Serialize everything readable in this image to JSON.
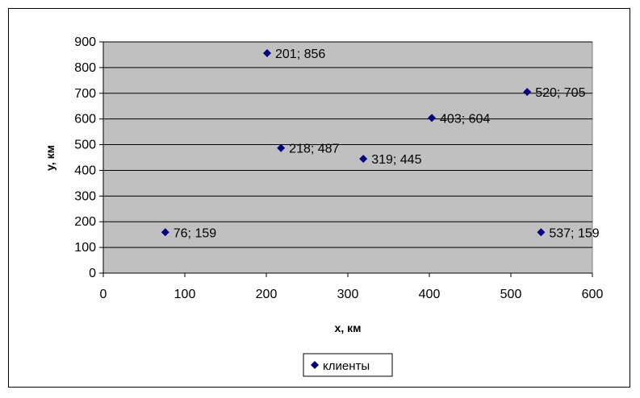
{
  "chart_data": {
    "type": "scatter",
    "title": "",
    "xlabel": "x, км",
    "ylabel": "y, км",
    "xlim": [
      0,
      600
    ],
    "ylim": [
      0,
      900
    ],
    "xticks": [
      0,
      100,
      200,
      300,
      400,
      500,
      600
    ],
    "yticks": [
      0,
      100,
      200,
      300,
      400,
      500,
      600,
      700,
      800,
      900
    ],
    "grid": "horizontal",
    "plot_background": "#c0c0c0",
    "legend_position": "bottom",
    "series": [
      {
        "name": "клиенты",
        "marker": "diamond",
        "color": "#000080",
        "points": [
          {
            "x": 201,
            "y": 856,
            "label": "201; 856"
          },
          {
            "x": 520,
            "y": 705,
            "label": "520; 705"
          },
          {
            "x": 403,
            "y": 604,
            "label": "403; 604"
          },
          {
            "x": 218,
            "y": 487,
            "label": "218; 487"
          },
          {
            "x": 319,
            "y": 445,
            "label": "319; 445"
          },
          {
            "x": 76,
            "y": 159,
            "label": "76; 159"
          },
          {
            "x": 537,
            "y": 159,
            "label": "537; 159"
          }
        ]
      }
    ]
  }
}
